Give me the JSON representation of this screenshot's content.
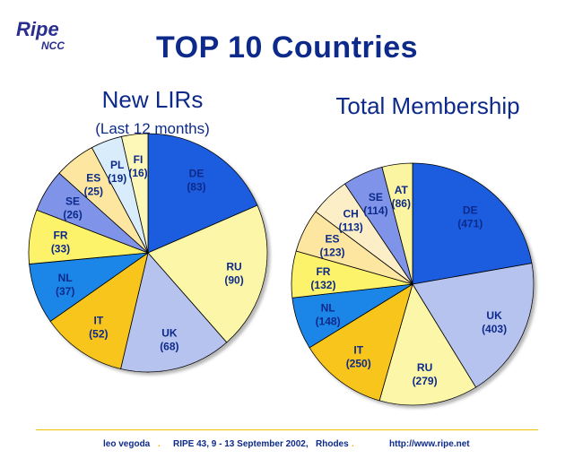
{
  "logo": {
    "word": "Ripe",
    "sub": "NCC"
  },
  "title": "TOP 10 Countries",
  "footer": {
    "author": "leo vegoda",
    "event": "RIPE 43, 9 - 13 September 2002,",
    "place": "Rhodes",
    "url": "http://www.ripe.net",
    "separator": "."
  },
  "chart_data": [
    {
      "type": "pie",
      "title": "New LIRs",
      "subtitle": "(Last 12 months)",
      "slices": [
        {
          "label": "DE",
          "value": 83,
          "display": "(83)"
        },
        {
          "label": "RU",
          "value": 90,
          "display": "(90)"
        },
        {
          "label": "UK",
          "value": 68,
          "display": "(68)"
        },
        {
          "label": "IT",
          "value": 52,
          "display": "(52)"
        },
        {
          "label": "NL",
          "value": 37,
          "display": "(37)"
        },
        {
          "label": "FR",
          "value": 33,
          "display": "(33)"
        },
        {
          "label": "SE",
          "value": 26,
          "display": "(26)"
        },
        {
          "label": "ES",
          "value": 25,
          "display": "(25)"
        },
        {
          "label": "PL",
          "value": 19,
          "display": "(19)"
        },
        {
          "label": "FI",
          "value": 16,
          "display": "(16)"
        }
      ]
    },
    {
      "type": "pie",
      "title": "Total Membership",
      "slices": [
        {
          "label": "DE",
          "value": 471,
          "display": "(471)"
        },
        {
          "label": "UK",
          "value": 403,
          "display": "(403)"
        },
        {
          "label": "RU",
          "value": 279,
          "display": "(279)"
        },
        {
          "label": "IT",
          "value": 250,
          "display": "(250)"
        },
        {
          "label": "NL",
          "value": 148,
          "display": "(148)"
        },
        {
          "label": "FR",
          "value": 132,
          "display": "(132)"
        },
        {
          "label": "ES",
          "value": 123,
          "display": "(123)"
        },
        {
          "label": "CH",
          "value": 113,
          "display": "(113)"
        },
        {
          "label": "SE",
          "value": 114,
          "display": "(114)"
        },
        {
          "label": "AT",
          "value": 86,
          "display": "(86)"
        }
      ]
    }
  ],
  "colors": {
    "DE": "#1a5de0",
    "RU": "#fbf6a8",
    "UK": "#b7c3ef",
    "IT": "#f7c51b",
    "NL": "#1a86e8",
    "FR": "#fdf36a",
    "SE": "#7f94e8",
    "ES": "#fce6a0",
    "PL": "#d8ecfb",
    "FI": "#fdf8b8",
    "CH": "#fcefc8",
    "AT": "#fbf4a0",
    "title": "#0d2a8a",
    "accent": "#f2b000"
  }
}
